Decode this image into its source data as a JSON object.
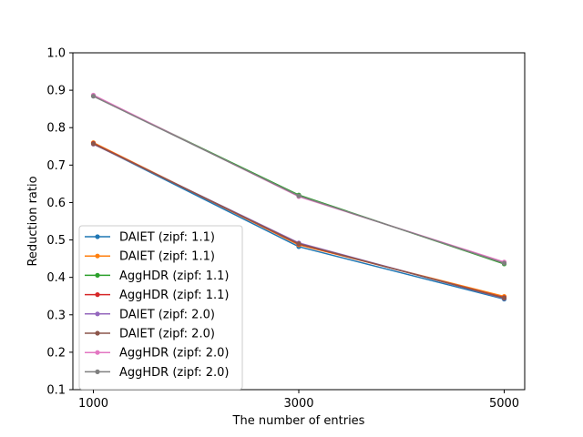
{
  "chart_data": {
    "type": "line",
    "xlabel": "The number of entries",
    "ylabel": "Reduction ratio",
    "x": [
      1000,
      3000,
      5000
    ],
    "x_ticks": [
      "1000",
      "3000",
      "5000"
    ],
    "ylim": [
      0.1,
      1.0
    ],
    "y_ticks": [
      "0.1",
      "0.2",
      "0.3",
      "0.4",
      "0.5",
      "0.6",
      "0.7",
      "0.8",
      "0.9",
      "1.0"
    ],
    "grid": false,
    "legend_position": "lower-left",
    "series": [
      {
        "name": "DAIET (zipf: 1.1)",
        "color": "#1f77b4",
        "values": [
          0.757,
          0.482,
          0.342
        ]
      },
      {
        "name": "DAIET (zipf: 1.1)",
        "color": "#ff7f0e",
        "values": [
          0.76,
          0.487,
          0.349
        ]
      },
      {
        "name": "AggHDR (zipf: 1.1)",
        "color": "#2ca02c",
        "values": [
          0.885,
          0.62,
          0.436
        ]
      },
      {
        "name": "AggHDR (zipf: 1.1)",
        "color": "#d62728",
        "values": [
          0.758,
          0.489,
          0.346
        ]
      },
      {
        "name": "DAIET (zipf: 2.0)",
        "color": "#9467bd",
        "values": [
          0.756,
          0.492,
          0.344
        ]
      },
      {
        "name": "DAIET (zipf: 2.0)",
        "color": "#8c564b",
        "values": [
          0.757,
          0.49,
          0.345
        ]
      },
      {
        "name": "AggHDR (zipf: 2.0)",
        "color": "#e377c2",
        "values": [
          0.887,
          0.616,
          0.441
        ]
      },
      {
        "name": "AggHDR (zipf: 2.0)",
        "color": "#7f7f7f",
        "values": [
          0.884,
          0.618,
          0.438
        ]
      }
    ]
  }
}
